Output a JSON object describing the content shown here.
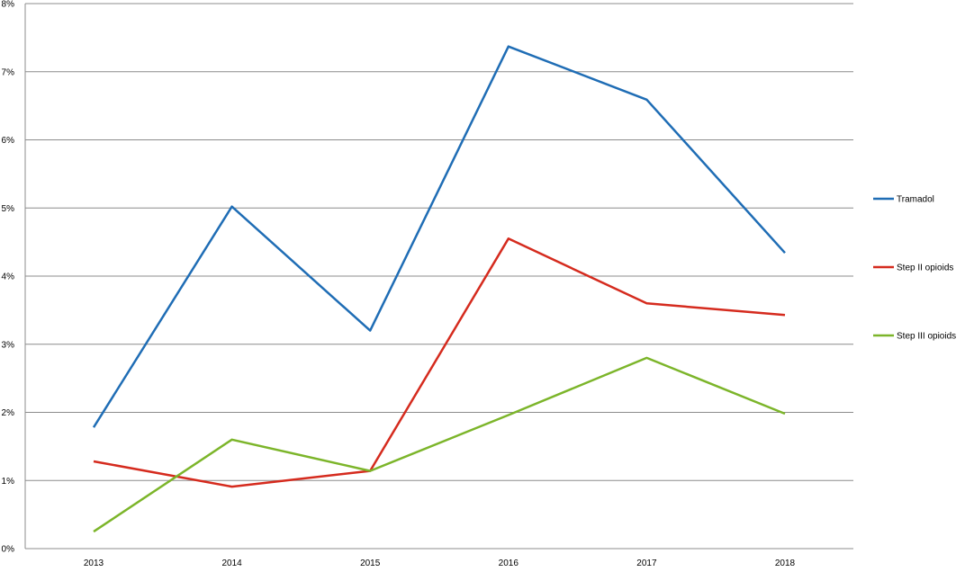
{
  "chart_data": {
    "type": "line",
    "title": "",
    "xlabel": "",
    "ylabel": "",
    "categories": [
      "2013",
      "2014",
      "2015",
      "2016",
      "2017",
      "2018"
    ],
    "ylim": [
      0,
      8
    ],
    "y_ticks": [
      0,
      1,
      2,
      3,
      4,
      5,
      6,
      7,
      8
    ],
    "y_tick_labels": [
      "0%",
      "1%",
      "2%",
      "3%",
      "4%",
      "5%",
      "6%",
      "7%",
      "8%"
    ],
    "grid": "horizontal",
    "legend_position": "right",
    "series": [
      {
        "name": "Tramadol",
        "color": "#1f6db5",
        "values": [
          1.78,
          5.02,
          3.2,
          7.37,
          6.59,
          4.34
        ]
      },
      {
        "name": "Step II opioids",
        "color": "#d52b1e",
        "values": [
          1.28,
          0.91,
          1.14,
          4.55,
          3.6,
          3.43
        ]
      },
      {
        "name": "Step III opioids",
        "color": "#7cb52a",
        "values": [
          0.25,
          1.6,
          1.14,
          1.96,
          2.8,
          1.98
        ]
      }
    ]
  }
}
